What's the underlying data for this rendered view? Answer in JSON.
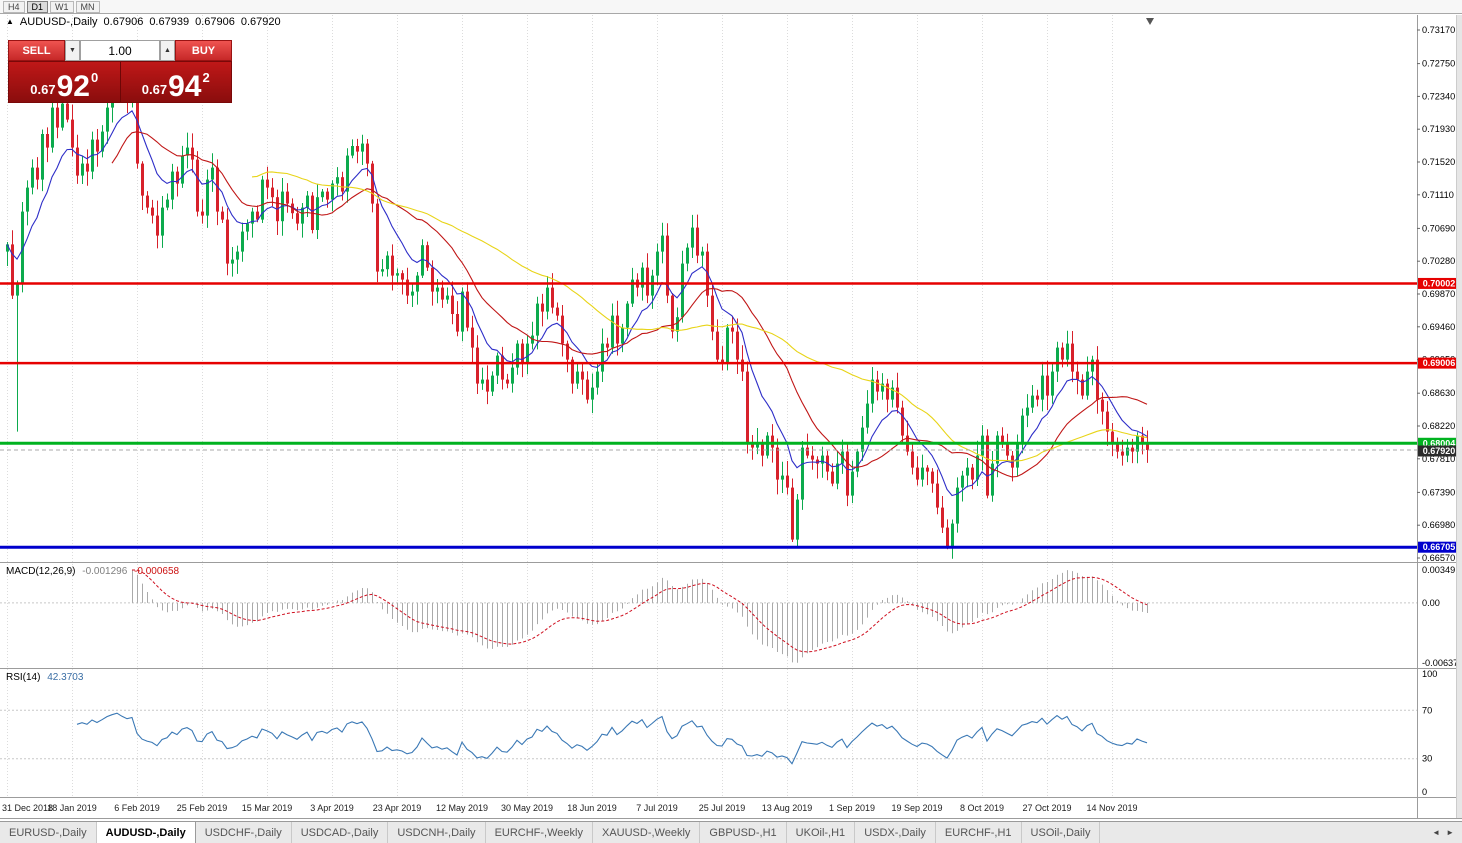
{
  "toolbar": {
    "timeframes": [
      "H4",
      "D1",
      "W1",
      "MN"
    ],
    "active": "D1"
  },
  "symbol_header": {
    "marker": "▲",
    "symbol": "AUDUSD-,Daily",
    "open": "0.67906",
    "high": "0.67939",
    "low": "0.67906",
    "close": "0.67920"
  },
  "trade_panel": {
    "sell_label": "SELL",
    "buy_label": "BUY",
    "volume": "1.00",
    "volume_down_icon": "▼",
    "volume_up_icon": "▲",
    "sell_price": {
      "prefix": "0.67",
      "big": "92",
      "sup": "0"
    },
    "buy_price": {
      "prefix": "0.67",
      "big": "94",
      "sup": "2"
    }
  },
  "chart_data": {
    "type": "candlestick",
    "title": "AUDUSD-,Daily",
    "price_axis": {
      "ticks": [
        "0.73170",
        "0.72750",
        "0.72340",
        "0.71930",
        "0.71520",
        "0.71110",
        "0.70690",
        "0.70280",
        "0.69870",
        "0.69460",
        "0.69050",
        "0.68630",
        "0.68220",
        "0.67810",
        "0.67390",
        "0.66980",
        "0.66570"
      ],
      "min": 0.6657,
      "max": 0.7317
    },
    "x_axis": {
      "labels": [
        "31 Dec 2018",
        "18 Jan 2019",
        "6 Feb 2019",
        "25 Feb 2019",
        "15 Mar 2019",
        "3 Apr 2019",
        "23 Apr 2019",
        "12 May 2019",
        "30 May 2019",
        "18 Jun 2019",
        "7 Jul 2019",
        "25 Jul 2019",
        "13 Aug 2019",
        "1 Sep 2019",
        "19 Sep 2019",
        "8 Oct 2019",
        "27 Oct 2019",
        "14 Nov 2019"
      ],
      "candles_per_label": 13
    },
    "levels": [
      {
        "price": 0.70002,
        "label": "0.70002",
        "color": "#e60000",
        "width": 2.5
      },
      {
        "price": 0.69006,
        "label": "0.69006",
        "color": "#e60000",
        "width": 2.5
      },
      {
        "price": 0.68004,
        "label": "0.68004",
        "color": "#00b21f",
        "width": 3
      },
      {
        "price": 0.66705,
        "label": "0.66705",
        "color": "#0000cd",
        "width": 3
      }
    ],
    "bid": {
      "price": 0.6792,
      "label": "0.67920",
      "badge_color": "#2b2b2b"
    },
    "candles": {
      "up_color": "#0caa4d",
      "down_color": "#d7212b",
      "first_open": 0.704,
      "wick_overrides": {
        "2": 0.6815,
        "157": 0.6677,
        "188": 0.6668
      },
      "closes": [
        0.7049,
        0.6985,
        0.7,
        0.709,
        0.712,
        0.7145,
        0.713,
        0.7187,
        0.717,
        0.722,
        0.7195,
        0.7225,
        0.7205,
        0.717,
        0.7135,
        0.715,
        0.714,
        0.718,
        0.7165,
        0.719,
        0.722,
        0.724,
        0.7255,
        0.724,
        0.7228,
        0.7238,
        0.715,
        0.711,
        0.7095,
        0.7085,
        0.706,
        0.7095,
        0.7105,
        0.714,
        0.7125,
        0.716,
        0.717,
        0.7155,
        0.709,
        0.7085,
        0.713,
        0.7145,
        0.709,
        0.708,
        0.7025,
        0.703,
        0.704,
        0.7065,
        0.7075,
        0.709,
        0.708,
        0.713,
        0.712,
        0.7108,
        0.7078,
        0.7115,
        0.71,
        0.7088,
        0.7075,
        0.7095,
        0.711,
        0.7067,
        0.7108,
        0.7115,
        0.7105,
        0.7125,
        0.7133,
        0.7115,
        0.716,
        0.7172,
        0.7165,
        0.7175,
        0.715,
        0.71,
        0.7015,
        0.7018,
        0.7035,
        0.701,
        0.7013,
        0.7005,
        0.6985,
        0.699,
        0.701,
        0.7048,
        0.702,
        0.699,
        0.6995,
        0.698,
        0.6985,
        0.6962,
        0.694,
        0.699,
        0.6945,
        0.692,
        0.6875,
        0.688,
        0.6865,
        0.6885,
        0.691,
        0.688,
        0.6875,
        0.6895,
        0.6925,
        0.69,
        0.6925,
        0.6935,
        0.6975,
        0.6965,
        0.6995,
        0.697,
        0.696,
        0.6925,
        0.6905,
        0.6875,
        0.689,
        0.688,
        0.6855,
        0.687,
        0.689,
        0.6925,
        0.692,
        0.696,
        0.6925,
        0.6945,
        0.6975,
        0.7005,
        0.6995,
        0.702,
        0.6985,
        0.701,
        0.704,
        0.706,
        0.6985,
        0.694,
        0.6958,
        0.7025,
        0.7045,
        0.707,
        0.7035,
        0.704,
        0.6985,
        0.694,
        0.6905,
        0.69,
        0.6945,
        0.694,
        0.6905,
        0.689,
        0.68,
        0.6795,
        0.6802,
        0.6785,
        0.681,
        0.6795,
        0.6755,
        0.676,
        0.6745,
        0.668,
        0.673,
        0.6795,
        0.6785,
        0.678,
        0.6775,
        0.6785,
        0.6765,
        0.675,
        0.6775,
        0.679,
        0.6735,
        0.6765,
        0.679,
        0.682,
        0.685,
        0.688,
        0.6865,
        0.6875,
        0.6855,
        0.687,
        0.6845,
        0.681,
        0.679,
        0.677,
        0.6755,
        0.677,
        0.6765,
        0.675,
        0.672,
        0.6695,
        0.667,
        0.67,
        0.6745,
        0.676,
        0.677,
        0.6755,
        0.6785,
        0.681,
        0.6735,
        0.6775,
        0.681,
        0.68,
        0.6785,
        0.677,
        0.68,
        0.6835,
        0.6845,
        0.686,
        0.6855,
        0.6885,
        0.686,
        0.689,
        0.692,
        0.6905,
        0.6925,
        0.689,
        0.688,
        0.686,
        0.689,
        0.6905,
        0.6855,
        0.684,
        0.6815,
        0.68,
        0.679,
        0.6785,
        0.6795,
        0.679,
        0.681,
        0.68,
        0.6792
      ]
    },
    "moving_averages": [
      {
        "type": "EMA",
        "period": 10,
        "color": "#2e2ec8"
      },
      {
        "type": "SMA",
        "period": 22,
        "color": "#c01616"
      },
      {
        "type": "SMA",
        "period": 50,
        "color": "#e8d418"
      }
    ],
    "macd": {
      "name": "MACD(12,26,9)",
      "value_main": "-0.001296",
      "value_signal": "-0.000658",
      "fast": 12,
      "slow": 26,
      "signal": 9,
      "axis_ticks": [
        "0.00349",
        "0.00",
        "-0.00637"
      ],
      "max": 0.00349,
      "min": -0.00637,
      "histogram_color": "#aaaaaa",
      "signal_color": "#cf1020"
    },
    "rsi": {
      "name": "RSI(14)",
      "value": "42.3703",
      "period": 14,
      "axis_ticks": [
        "100",
        "70",
        "30",
        "0"
      ],
      "levels": [
        70,
        30
      ],
      "line_color": "#3a78b5"
    }
  },
  "tabs": {
    "active_index": 1,
    "scroll_left_icon": "◄",
    "scroll_right_icon": "►",
    "items": [
      "EURUSD-,Daily",
      "AUDUSD-,Daily",
      "USDCHF-,Daily",
      "USDCAD-,Daily",
      "USDCNH-,Daily",
      "EURCHF-,Weekly",
      "XAUUSD-,Weekly",
      "GBPUSD-,H1",
      "UKOil-,H1",
      "USDX-,Daily",
      "EURCHF-,H1",
      "USOil-,Daily"
    ]
  }
}
